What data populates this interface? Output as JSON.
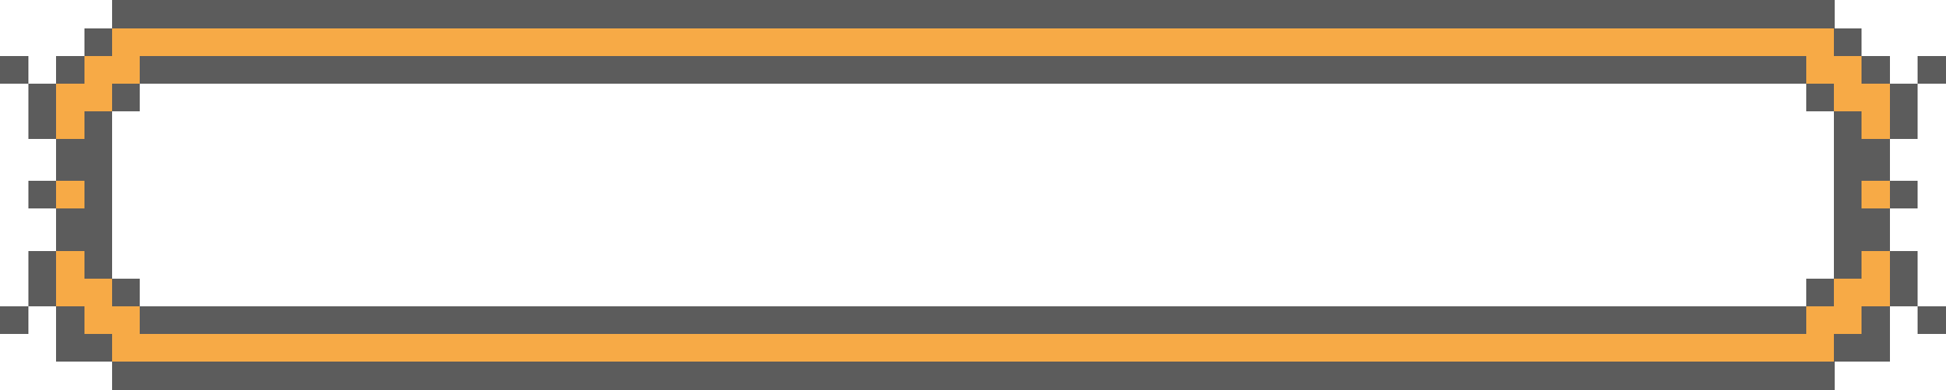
{
  "dialog_panel": {
    "style": "pixel-art",
    "colors": {
      "border": "#5c5c5c",
      "accent": "#f7aa46",
      "fill": "#ffffff"
    },
    "text": ""
  }
}
